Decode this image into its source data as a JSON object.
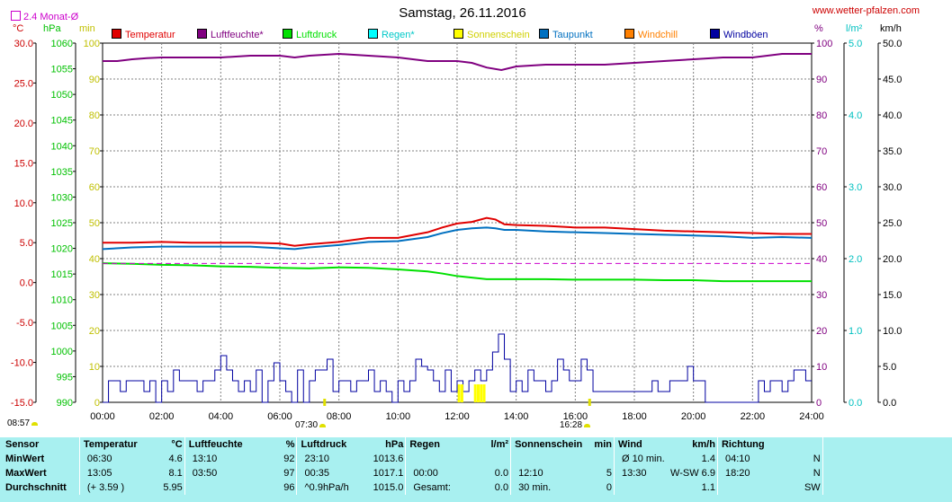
{
  "header": {
    "title": "Samstag, 26.11.2016",
    "site": "www.wetter-pfalzen.com",
    "monat_label": "2.4 Monat-Ø"
  },
  "axis_units": {
    "celsius": "°C",
    "hpa": "hPa",
    "min": "min",
    "percent": "%",
    "rain": "l/m²",
    "kmh": "km/h"
  },
  "sun_marks": {
    "sunrise": "07:30",
    "sunset": "16:28",
    "current": "08:57"
  },
  "legend": [
    {
      "label": "Temperatur",
      "color": "#e00000"
    },
    {
      "label": "Luftfeuchte*",
      "color": "#800080"
    },
    {
      "label": "Luftdruck",
      "color": "#00e000"
    },
    {
      "label": "Regen*",
      "color": "#00ffff"
    },
    {
      "label": "Sonnenschein",
      "color": "#ffff00"
    },
    {
      "label": "Taupunkt",
      "color": "#0070c0"
    },
    {
      "label": "Windchill",
      "color": "#ff8000"
    },
    {
      "label": "Windböen",
      "color": "#0000a0"
    }
  ],
  "chart_data": {
    "type": "line",
    "title": "Samstag, 26.11.2016",
    "x_ticks": [
      "00:00",
      "02:00",
      "04:00",
      "06:00",
      "08:00",
      "10:00",
      "12:00",
      "14:00",
      "16:00",
      "18:00",
      "20:00",
      "22:00",
      "24:00"
    ],
    "xlim": [
      0,
      24
    ],
    "grid": true,
    "axes": {
      "temperature": {
        "unit": "°C",
        "range": [
          -15,
          30
        ],
        "ticks": [
          "30.0",
          "25.0",
          "20.0",
          "15.0",
          "10.0",
          "5.0",
          "0.0",
          "-5.0",
          "-10.0",
          "-15.0"
        ]
      },
      "pressure": {
        "unit": "hPa",
        "range": [
          990,
          1060
        ],
        "ticks": [
          "1060",
          "1055",
          "1050",
          "1045",
          "1040",
          "1035",
          "1030",
          "1025",
          "1020",
          "1015",
          "1010",
          "1005",
          "1000",
          "995",
          "990"
        ]
      },
      "sunshine": {
        "unit": "min",
        "range": [
          0,
          100
        ],
        "ticks": [
          "100",
          "90",
          "80",
          "70",
          "60",
          "50",
          "40",
          "30",
          "20",
          "10",
          "0"
        ]
      },
      "humidity": {
        "unit": "%",
        "range": [
          0,
          100
        ],
        "ticks": [
          "100",
          "90",
          "80",
          "70",
          "60",
          "50",
          "40",
          "30",
          "20",
          "10",
          "0"
        ]
      },
      "rain": {
        "unit": "l/m²",
        "range": [
          0,
          5
        ],
        "ticks": [
          "5.0",
          "4.0",
          "3.0",
          "2.0",
          "1.0",
          "0.0"
        ]
      },
      "wind": {
        "unit": "km/h",
        "range": [
          0,
          50
        ],
        "ticks": [
          "50.0",
          "45.0",
          "40.0",
          "35.0",
          "30.0",
          "25.0",
          "20.0",
          "15.0",
          "10.0",
          "5.0",
          "0.0"
        ]
      }
    },
    "series": [
      {
        "name": "Luftfeuchte*",
        "axis": "humidity",
        "color": "#800080",
        "x": [
          0,
          0.5,
          1,
          1.5,
          2,
          3,
          4,
          5,
          6,
          6.5,
          7,
          8,
          9,
          10,
          11,
          11.5,
          12,
          12.5,
          13,
          13.5,
          14,
          15,
          16,
          17,
          18,
          19,
          20,
          21,
          22,
          23,
          24
        ],
        "y": [
          95,
          95,
          95.5,
          95.8,
          96,
          96,
          96,
          96.5,
          96.5,
          96,
          96.5,
          97,
          96.5,
          96,
          95,
          95,
          95,
          94.5,
          93.2,
          92.5,
          93.5,
          94,
          94,
          94,
          94.5,
          95,
          95.5,
          96,
          96,
          97,
          97
        ]
      },
      {
        "name": "Temperatur",
        "axis": "temperature",
        "color": "#e00000",
        "x": [
          0,
          1,
          2,
          3,
          4,
          5,
          6,
          6.5,
          7,
          8,
          9,
          10,
          11,
          11.5,
          12,
          12.5,
          13,
          13.3,
          13.6,
          14,
          15,
          16,
          17,
          18,
          19,
          20,
          21,
          22,
          23,
          24
        ],
        "y": [
          5.0,
          5.0,
          5.1,
          5.0,
          5.0,
          5.0,
          4.9,
          4.6,
          4.8,
          5.1,
          5.6,
          5.6,
          6.3,
          6.9,
          7.4,
          7.6,
          8.1,
          7.9,
          7.3,
          7.2,
          7.1,
          6.9,
          6.9,
          6.7,
          6.5,
          6.4,
          6.3,
          6.2,
          6.1,
          6.1
        ]
      },
      {
        "name": "Taupunkt",
        "axis": "temperature",
        "color": "#0070c0",
        "x": [
          0,
          1,
          2,
          3,
          4,
          5,
          6,
          6.5,
          7,
          8,
          9,
          10,
          11,
          11.5,
          12,
          12.5,
          13,
          13.3,
          13.6,
          14,
          15,
          16,
          17,
          18,
          19,
          20,
          21,
          22,
          23,
          24
        ],
        "y": [
          4.2,
          4.4,
          4.5,
          4.5,
          4.5,
          4.5,
          4.3,
          4.2,
          4.4,
          4.7,
          5.1,
          5.2,
          5.7,
          6.2,
          6.6,
          6.8,
          6.9,
          6.8,
          6.6,
          6.6,
          6.4,
          6.3,
          6.2,
          6.1,
          6.0,
          5.9,
          5.8,
          5.6,
          5.7,
          5.6
        ]
      },
      {
        "name": "Luftdruck",
        "axis": "pressure",
        "color": "#00e000",
        "x": [
          0,
          1,
          2,
          3,
          4,
          5,
          6,
          7,
          8,
          9,
          10,
          11,
          11.5,
          12,
          12.5,
          13,
          14,
          15,
          16,
          17,
          18,
          19,
          20,
          21,
          22,
          23,
          24
        ],
        "y": [
          1017.1,
          1017.0,
          1016.8,
          1016.7,
          1016.5,
          1016.4,
          1016.2,
          1016.1,
          1016.3,
          1016.2,
          1015.9,
          1015.5,
          1015.1,
          1014.6,
          1014.3,
          1014.0,
          1014.0,
          1014.0,
          1013.9,
          1013.9,
          1013.9,
          1013.8,
          1013.8,
          1013.6,
          1013.6,
          1013.6,
          1013.6
        ]
      },
      {
        "name": "Windböen",
        "axis": "wind",
        "color": "#0000a0",
        "style": "step",
        "x": [
          0,
          0.2,
          0.4,
          0.6,
          0.8,
          1.0,
          1.2,
          1.4,
          1.6,
          1.8,
          2.0,
          2.2,
          2.4,
          2.6,
          2.8,
          3.0,
          3.2,
          3.4,
          3.6,
          3.8,
          4.0,
          4.2,
          4.4,
          4.6,
          4.8,
          5.0,
          5.2,
          5.4,
          5.6,
          5.8,
          6.0,
          6.2,
          6.4,
          6.6,
          6.8,
          7.0,
          7.2,
          7.4,
          7.6,
          7.8,
          8.0,
          8.2,
          8.4,
          8.6,
          8.8,
          9.0,
          9.2,
          9.4,
          9.6,
          9.8,
          10.0,
          10.2,
          10.4,
          10.6,
          10.8,
          11.0,
          11.2,
          11.4,
          11.6,
          11.8,
          12.0,
          12.2,
          12.4,
          12.6,
          12.8,
          13.0,
          13.2,
          13.4,
          13.6,
          13.8,
          14.0,
          14.2,
          14.4,
          14.6,
          14.8,
          15.0,
          15.2,
          15.4,
          15.6,
          15.8,
          16.0,
          16.2,
          16.4,
          16.6,
          16.8,
          17.0,
          17.2,
          17.4,
          17.6,
          17.8,
          18.0,
          18.2,
          18.4,
          18.6,
          18.8,
          19.0,
          19.2,
          19.4,
          19.6,
          19.8,
          20.0,
          20.2,
          20.4,
          20.6,
          20.8,
          21.0,
          21.2,
          21.4,
          21.6,
          21.8,
          22.0,
          22.2,
          22.4,
          22.6,
          22.8,
          23.0,
          23.2,
          23.4,
          23.6,
          23.8,
          24.0
        ],
        "y": [
          0,
          3,
          3,
          1.5,
          3,
          3,
          3,
          1.5,
          3,
          0,
          3,
          1.5,
          4.5,
          3,
          3,
          3,
          1.5,
          3,
          3,
          4.5,
          6.5,
          4.5,
          3,
          1.5,
          3,
          1.5,
          4.5,
          0,
          3,
          5.5,
          3,
          1.5,
          0,
          4.5,
          0,
          3,
          4.5,
          4.5,
          6,
          1.5,
          3,
          3,
          1.5,
          3,
          3,
          4.5,
          1.5,
          3,
          1.5,
          0,
          3,
          1.5,
          3,
          6,
          5,
          4.5,
          3,
          1.5,
          4.5,
          1.5,
          3,
          1.5,
          3,
          4.5,
          3,
          4.5,
          7,
          9.5,
          6,
          1.5,
          3,
          1.5,
          4.5,
          3,
          3,
          1.5,
          3,
          6,
          4.5,
          3,
          3,
          6,
          4.5,
          1.5,
          1.5,
          1.5,
          1.5,
          1.5,
          1.5,
          1.5,
          1.5,
          1.5,
          1.5,
          3,
          1.5,
          1.5,
          3,
          3,
          3,
          5,
          3,
          3,
          0,
          0,
          0,
          0,
          0,
          0,
          0,
          0,
          0,
          3,
          1.5,
          3,
          3,
          1.5,
          3,
          4.5,
          4.5,
          3,
          3
        ]
      },
      {
        "name": "Sonnenschein",
        "axis": "sunshine",
        "color": "#ffff00",
        "style": "bars",
        "x": [
          12.05,
          12.15,
          12.6,
          12.7,
          12.8,
          12.9
        ],
        "y": [
          5,
          5,
          5,
          5,
          5,
          5
        ]
      },
      {
        "name": "2.4 Monat-Ø",
        "axis": "temperature",
        "color": "#cc00cc",
        "style": "dashed",
        "x": [
          0,
          24
        ],
        "y": [
          2.4,
          2.4
        ]
      }
    ]
  },
  "stats": {
    "headers": [
      {
        "label": "Sensor",
        "unit": ""
      },
      {
        "label": "Temperatur",
        "unit": "°C"
      },
      {
        "label": "Luftfeuchte",
        "unit": "%"
      },
      {
        "label": "Luftdruck",
        "unit": "hPa"
      },
      {
        "label": "Regen",
        "unit": "l/m²"
      },
      {
        "label": "Sonnenschein",
        "unit": "min"
      },
      {
        "label": "Wind",
        "unit": "km/h"
      },
      {
        "label": "Richtung",
        "unit": ""
      }
    ],
    "rows": [
      {
        "label": "MinWert",
        "cells": [
          [
            "06:30",
            "4.6"
          ],
          [
            "13:10",
            "92"
          ],
          [
            "23:10",
            "1013.6"
          ],
          [
            "",
            ""
          ],
          [
            "",
            ""
          ],
          [
            "Ø 10 min.",
            "1.4"
          ],
          [
            "04:10",
            "N"
          ]
        ]
      },
      {
        "label": "MaxWert",
        "cells": [
          [
            "13:05",
            "8.1"
          ],
          [
            "03:50",
            "97"
          ],
          [
            "00:35",
            "1017.1"
          ],
          [
            "00:00",
            "0.0"
          ],
          [
            "12:10",
            "5"
          ],
          [
            "13:30",
            "W-SW 6.9"
          ],
          [
            "18:20",
            "N"
          ]
        ]
      },
      {
        "label": "Durchschnitt",
        "cells": [
          [
            "(+ 3.59 )",
            "5.95"
          ],
          [
            "",
            "96"
          ],
          [
            "^0.9hPa/h",
            "1015.0"
          ],
          [
            "Gesamt:",
            "0.0"
          ],
          [
            "30 min.",
            "0"
          ],
          [
            "",
            "1.1"
          ],
          [
            "",
            "SW"
          ]
        ]
      }
    ]
  }
}
